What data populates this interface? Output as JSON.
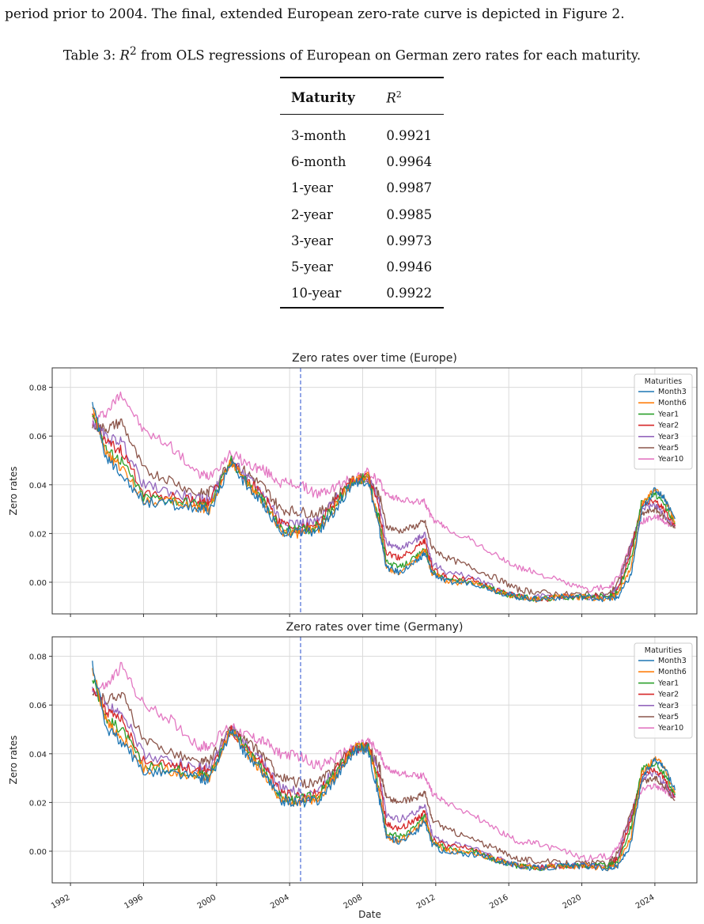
{
  "intro_text": "period prior to 2004. The final, extended European zero-rate curve is depicted in Figure 2.",
  "caption": {
    "prefix": "Table 3: ",
    "symbol": "R",
    "sup": "2",
    "suffix": " from OLS regressions of European on German zero rates for each maturity."
  },
  "table": {
    "col_maturity": "Maturity",
    "col_r2_symbol": "R",
    "col_r2_sup": "2",
    "rows": [
      {
        "maturity": "3-month",
        "r2": "0.9921"
      },
      {
        "maturity": "6-month",
        "r2": "0.9964"
      },
      {
        "maturity": "1-year",
        "r2": "0.9987"
      },
      {
        "maturity": "2-year",
        "r2": "0.9985"
      },
      {
        "maturity": "3-year",
        "r2": "0.9973"
      },
      {
        "maturity": "5-year",
        "r2": "0.9946"
      },
      {
        "maturity": "10-year",
        "r2": "0.9922"
      }
    ]
  },
  "colors": {
    "Month3": "#1f77b4",
    "Month6": "#ff7f0e",
    "Year1": "#2ca02c",
    "Year2": "#d62728",
    "Year3": "#9467bd",
    "Year5": "#8c564b",
    "Year10": "#e377c2",
    "vline": "#4a6bd6"
  },
  "chart_data": [
    {
      "type": "line",
      "title": "Zero rates over time (Europe)",
      "xlabel": "",
      "ylabel": "Zero rates",
      "xlim": [
        1991.0,
        2026.3
      ],
      "ylim": [
        -0.013,
        0.088
      ],
      "yticks": [
        "0.00",
        "0.02",
        "0.04",
        "0.06",
        "0.08"
      ],
      "xticks": [],
      "grid": true,
      "vline_x": 2004.6,
      "legend": {
        "title": "Maturities",
        "placement": "top-right"
      },
      "x": [
        1993.2,
        1994.0,
        1994.8,
        1996.0,
        1997.5,
        1999.0,
        1999.6,
        2000.8,
        2001.8,
        2002.6,
        2003.5,
        2004.5,
        2005.6,
        2006.5,
        2007.5,
        2008.3,
        2008.9,
        2009.3,
        2010.0,
        2010.9,
        2011.4,
        2011.8,
        2012.6,
        2014.0,
        2015.5,
        2016.5,
        2017.5,
        2019.0,
        2020.2,
        2021.5,
        2022.0,
        2022.7,
        2023.3,
        2024.0,
        2024.5,
        2025.1
      ],
      "series": [
        {
          "name": "Month3",
          "values": [
            0.074,
            0.05,
            0.045,
            0.033,
            0.032,
            0.03,
            0.029,
            0.049,
            0.038,
            0.032,
            0.021,
            0.02,
            0.021,
            0.03,
            0.041,
            0.042,
            0.022,
            0.006,
            0.004,
            0.008,
            0.012,
            0.004,
            0.0,
            0.0,
            -0.004,
            -0.006,
            -0.007,
            -0.006,
            -0.006,
            -0.007,
            -0.006,
            0.003,
            0.03,
            0.038,
            0.035,
            0.026
          ]
        },
        {
          "name": "Month6",
          "values": [
            0.073,
            0.052,
            0.047,
            0.034,
            0.033,
            0.031,
            0.03,
            0.05,
            0.039,
            0.032,
            0.021,
            0.02,
            0.022,
            0.031,
            0.042,
            0.043,
            0.024,
            0.006,
            0.004,
            0.009,
            0.013,
            0.004,
            0.0,
            0.0,
            -0.004,
            -0.006,
            -0.007,
            -0.006,
            -0.006,
            -0.007,
            -0.005,
            0.006,
            0.032,
            0.038,
            0.035,
            0.025
          ]
        },
        {
          "name": "Year1",
          "values": [
            0.07,
            0.054,
            0.05,
            0.035,
            0.034,
            0.032,
            0.031,
            0.05,
            0.04,
            0.033,
            0.022,
            0.021,
            0.023,
            0.032,
            0.042,
            0.043,
            0.026,
            0.008,
            0.006,
            0.01,
            0.014,
            0.004,
            0.001,
            0.0,
            -0.004,
            -0.006,
            -0.007,
            -0.006,
            -0.006,
            -0.006,
            -0.004,
            0.01,
            0.034,
            0.036,
            0.032,
            0.024
          ]
        },
        {
          "name": "Year2",
          "values": [
            0.068,
            0.057,
            0.054,
            0.037,
            0.035,
            0.033,
            0.033,
            0.05,
            0.041,
            0.035,
            0.024,
            0.022,
            0.024,
            0.033,
            0.042,
            0.043,
            0.03,
            0.012,
            0.01,
            0.014,
            0.017,
            0.006,
            0.002,
            0.001,
            -0.004,
            -0.006,
            -0.007,
            -0.006,
            -0.006,
            -0.006,
            -0.003,
            0.013,
            0.032,
            0.034,
            0.03,
            0.023
          ]
        },
        {
          "name": "Year3",
          "values": [
            0.066,
            0.059,
            0.058,
            0.04,
            0.037,
            0.034,
            0.034,
            0.05,
            0.042,
            0.036,
            0.026,
            0.024,
            0.025,
            0.034,
            0.042,
            0.043,
            0.033,
            0.016,
            0.014,
            0.017,
            0.02,
            0.008,
            0.004,
            0.002,
            -0.003,
            -0.006,
            -0.006,
            -0.006,
            -0.006,
            -0.006,
            -0.002,
            0.015,
            0.03,
            0.032,
            0.028,
            0.023
          ]
        },
        {
          "name": "Year5",
          "values": [
            0.064,
            0.063,
            0.066,
            0.046,
            0.042,
            0.036,
            0.037,
            0.05,
            0.044,
            0.039,
            0.03,
            0.029,
            0.028,
            0.035,
            0.042,
            0.043,
            0.036,
            0.023,
            0.021,
            0.023,
            0.025,
            0.014,
            0.01,
            0.006,
            0.001,
            -0.003,
            -0.004,
            -0.005,
            -0.005,
            -0.005,
            0.0,
            0.016,
            0.028,
            0.03,
            0.027,
            0.022
          ]
        },
        {
          "name": "Year10",
          "values": [
            0.066,
            0.07,
            0.078,
            0.062,
            0.056,
            0.044,
            0.044,
            0.053,
            0.048,
            0.046,
            0.041,
            0.04,
            0.036,
            0.039,
            0.043,
            0.045,
            0.041,
            0.036,
            0.034,
            0.033,
            0.033,
            0.026,
            0.022,
            0.017,
            0.01,
            0.006,
            0.004,
            0.0,
            -0.003,
            -0.002,
            0.002,
            0.016,
            0.025,
            0.027,
            0.025,
            0.023
          ]
        }
      ]
    },
    {
      "type": "line",
      "title": "Zero rates over time (Germany)",
      "xlabel": "Date",
      "ylabel": "Zero rates",
      "xlim": [
        1991.0,
        2026.3
      ],
      "ylim": [
        -0.013,
        0.088
      ],
      "yticks": [
        "0.00",
        "0.02",
        "0.04",
        "0.06",
        "0.08"
      ],
      "xticks": [
        "1992",
        "1996",
        "2000",
        "2004",
        "2008",
        "2012",
        "2016",
        "2020",
        "2024"
      ],
      "grid": true,
      "vline_x": 2004.6,
      "legend": {
        "title": "Maturities",
        "placement": "top-right"
      },
      "x": [
        1993.2,
        1994.0,
        1994.8,
        1996.0,
        1997.5,
        1999.0,
        1999.6,
        2000.8,
        2001.8,
        2002.6,
        2003.5,
        2004.5,
        2005.6,
        2006.5,
        2007.5,
        2008.3,
        2008.9,
        2009.3,
        2010.0,
        2010.9,
        2011.4,
        2011.8,
        2012.6,
        2014.0,
        2015.5,
        2016.5,
        2017.5,
        2019.0,
        2020.2,
        2021.5,
        2022.0,
        2022.7,
        2023.3,
        2024.0,
        2024.5,
        2025.1
      ],
      "series": [
        {
          "name": "Month3",
          "values": [
            0.077,
            0.05,
            0.045,
            0.033,
            0.032,
            0.03,
            0.029,
            0.049,
            0.038,
            0.032,
            0.021,
            0.02,
            0.021,
            0.03,
            0.041,
            0.042,
            0.022,
            0.006,
            0.004,
            0.008,
            0.012,
            0.003,
            -0.001,
            -0.001,
            -0.004,
            -0.006,
            -0.007,
            -0.006,
            -0.006,
            -0.007,
            -0.006,
            0.003,
            0.03,
            0.038,
            0.035,
            0.025
          ]
        },
        {
          "name": "Month6",
          "values": [
            0.075,
            0.052,
            0.047,
            0.034,
            0.033,
            0.031,
            0.03,
            0.05,
            0.039,
            0.032,
            0.021,
            0.02,
            0.022,
            0.031,
            0.042,
            0.043,
            0.024,
            0.006,
            0.004,
            0.009,
            0.013,
            0.004,
            0.0,
            0.0,
            -0.004,
            -0.006,
            -0.007,
            -0.006,
            -0.006,
            -0.007,
            -0.005,
            0.006,
            0.032,
            0.038,
            0.035,
            0.024
          ]
        },
        {
          "name": "Year1",
          "values": [
            0.071,
            0.054,
            0.05,
            0.035,
            0.034,
            0.032,
            0.031,
            0.05,
            0.04,
            0.033,
            0.022,
            0.021,
            0.023,
            0.032,
            0.042,
            0.043,
            0.026,
            0.008,
            0.006,
            0.01,
            0.014,
            0.004,
            0.001,
            0.0,
            -0.004,
            -0.006,
            -0.007,
            -0.006,
            -0.006,
            -0.006,
            -0.004,
            0.01,
            0.034,
            0.036,
            0.032,
            0.023
          ]
        },
        {
          "name": "Year2",
          "values": [
            0.068,
            0.057,
            0.054,
            0.037,
            0.035,
            0.033,
            0.033,
            0.05,
            0.041,
            0.035,
            0.024,
            0.022,
            0.024,
            0.033,
            0.042,
            0.043,
            0.03,
            0.011,
            0.009,
            0.013,
            0.016,
            0.005,
            0.002,
            0.001,
            -0.004,
            -0.006,
            -0.007,
            -0.006,
            -0.006,
            -0.006,
            -0.003,
            0.013,
            0.032,
            0.034,
            0.03,
            0.022
          ]
        },
        {
          "name": "Year3",
          "values": [
            0.066,
            0.059,
            0.058,
            0.04,
            0.037,
            0.034,
            0.034,
            0.05,
            0.042,
            0.036,
            0.026,
            0.024,
            0.025,
            0.034,
            0.042,
            0.043,
            0.032,
            0.015,
            0.013,
            0.016,
            0.019,
            0.007,
            0.003,
            0.002,
            -0.003,
            -0.006,
            -0.006,
            -0.006,
            -0.006,
            -0.006,
            -0.002,
            0.015,
            0.03,
            0.032,
            0.028,
            0.022
          ]
        },
        {
          "name": "Year5",
          "values": [
            0.064,
            0.062,
            0.065,
            0.045,
            0.041,
            0.036,
            0.037,
            0.05,
            0.044,
            0.039,
            0.03,
            0.028,
            0.028,
            0.035,
            0.042,
            0.043,
            0.035,
            0.022,
            0.02,
            0.022,
            0.024,
            0.013,
            0.009,
            0.005,
            0.0,
            -0.003,
            -0.004,
            -0.005,
            -0.005,
            -0.005,
            0.0,
            0.016,
            0.028,
            0.03,
            0.027,
            0.021
          ]
        },
        {
          "name": "Year10",
          "values": [
            0.066,
            0.068,
            0.076,
            0.06,
            0.054,
            0.043,
            0.043,
            0.052,
            0.047,
            0.045,
            0.04,
            0.039,
            0.035,
            0.038,
            0.043,
            0.045,
            0.04,
            0.034,
            0.032,
            0.031,
            0.031,
            0.024,
            0.02,
            0.015,
            0.008,
            0.004,
            0.003,
            0.0,
            -0.003,
            -0.002,
            0.002,
            0.016,
            0.025,
            0.027,
            0.025,
            0.022
          ]
        }
      ]
    }
  ]
}
